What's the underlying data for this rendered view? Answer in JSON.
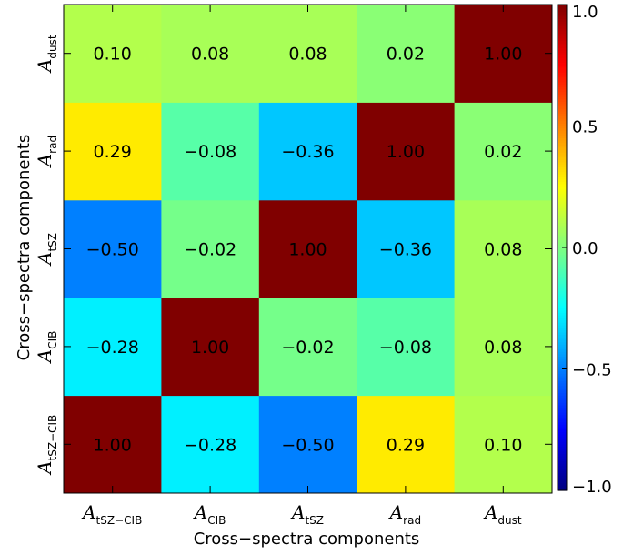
{
  "chart_data": {
    "type": "heatmap",
    "xlabel": "Cross−spectra components",
    "ylabel": "Cross−spectra components",
    "categories": [
      {
        "symbol": "A",
        "sub": "tSZ−CIB"
      },
      {
        "symbol": "A",
        "sub": "CIB"
      },
      {
        "symbol": "A",
        "sub": "tSZ"
      },
      {
        "symbol": "A",
        "sub": "rad"
      },
      {
        "symbol": "A",
        "sub": "dust"
      }
    ],
    "matrix": [
      [
        1.0,
        -0.28,
        -0.5,
        0.29,
        0.1
      ],
      [
        -0.28,
        1.0,
        -0.02,
        -0.08,
        0.08
      ],
      [
        -0.5,
        -0.02,
        1.0,
        -0.36,
        0.08
      ],
      [
        0.29,
        -0.08,
        -0.36,
        1.0,
        0.02
      ],
      [
        0.1,
        0.08,
        0.08,
        0.02,
        1.0
      ]
    ],
    "colorbar": {
      "range": [
        -1.0,
        1.0
      ],
      "ticks": [
        1.0,
        0.5,
        0.0,
        -0.5,
        -1.0
      ],
      "tick_labels": [
        "1.0",
        "0.5",
        "0.0",
        "−0.5",
        "−1.0"
      ],
      "colormap": "jet"
    }
  }
}
